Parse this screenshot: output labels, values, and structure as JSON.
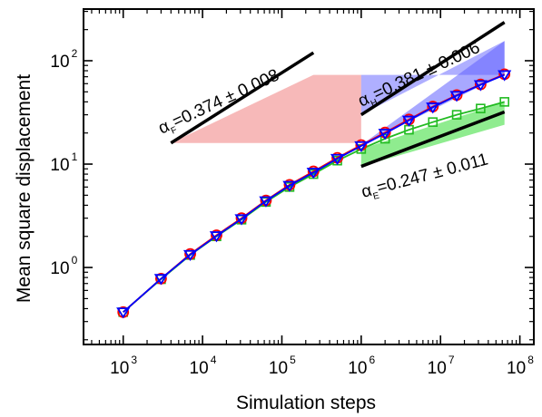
{
  "chart_data": {
    "type": "line",
    "title": "",
    "xlabel": "Simulation steps",
    "ylabel": "Mean square displacement",
    "x_scale": "log",
    "y_scale": "log",
    "xlim": [
      316,
      150000000
    ],
    "ylim": [
      0.18,
      316
    ],
    "x_ticks": [
      {
        "base": "10",
        "exp": "3",
        "value": 1000
      },
      {
        "base": "10",
        "exp": "4",
        "value": 10000
      },
      {
        "base": "10",
        "exp": "5",
        "value": 100000
      },
      {
        "base": "10",
        "exp": "6",
        "value": 1000000
      },
      {
        "base": "10",
        "exp": "7",
        "value": 10000000
      },
      {
        "base": "10",
        "exp": "8",
        "value": 100000000
      }
    ],
    "y_ticks": [
      {
        "base": "10",
        "exp": "0",
        "value": 1
      },
      {
        "base": "10",
        "exp": "1",
        "value": 10
      },
      {
        "base": "10",
        "exp": "2",
        "value": 100
      }
    ],
    "grid": false,
    "legend": "none",
    "series": [
      {
        "color": "#ff0000",
        "marker": "circle",
        "x": [
          1000,
          3000,
          7000,
          15000,
          31000,
          63000,
          125000,
          250000,
          500000,
          1000000,
          2000000,
          4000000,
          8000000,
          16000000,
          32000000,
          64000000
        ],
        "y": [
          0.37,
          0.78,
          1.35,
          2.05,
          3.0,
          4.45,
          6.3,
          8.5,
          11.5,
          15.3,
          20.2,
          27.0,
          36.0,
          46.5,
          59.0,
          74.0
        ]
      },
      {
        "color": "#0000ff",
        "marker": "triangle-down",
        "x": [
          1000,
          3000,
          7000,
          15000,
          31000,
          63000,
          125000,
          250000,
          500000,
          1000000,
          2000000,
          4000000,
          8000000,
          16000000,
          32000000,
          64000000
        ],
        "y": [
          0.37,
          0.78,
          1.33,
          2.02,
          2.95,
          4.4,
          6.2,
          8.3,
          11.3,
          15.0,
          19.8,
          26.5,
          35.5,
          46.0,
          58.5,
          73.0
        ]
      },
      {
        "color": "#22bb22",
        "marker": "square",
        "x": [
          1000,
          3000,
          7000,
          15000,
          31000,
          63000,
          125000,
          250000,
          500000,
          1000000,
          2000000,
          4000000,
          8000000,
          16000000,
          32000000,
          64000000
        ],
        "y": [
          0.37,
          0.77,
          1.32,
          2.0,
          2.9,
          4.3,
          6.0,
          8.0,
          10.8,
          14.0,
          17.6,
          21.5,
          25.5,
          30.0,
          34.5,
          40.0
        ]
      }
    ],
    "annotations": [
      {
        "prefix": "α",
        "sub": "F",
        "rest": "=0.374 ± 0.008",
        "color": "#f08080",
        "slope_value": 0.374,
        "band_x": [
          4000,
          2500000
        ],
        "band_y": [
          16,
          73
        ]
      },
      {
        "prefix": "α",
        "sub": "H",
        "rest": "=0.381 ± 0.006",
        "color": "#6060ff",
        "slope_value": 0.381,
        "band_x": [
          1000000,
          64000000
        ],
        "band_y": [
          15.3,
          74
        ]
      },
      {
        "prefix": "α",
        "sub": "E",
        "rest": "=0.247 ± 0.011",
        "color": "#33dd33",
        "slope_value": 0.247,
        "band_x": [
          1000000,
          64000000
        ],
        "band_y": [
          14,
          40
        ]
      }
    ]
  }
}
